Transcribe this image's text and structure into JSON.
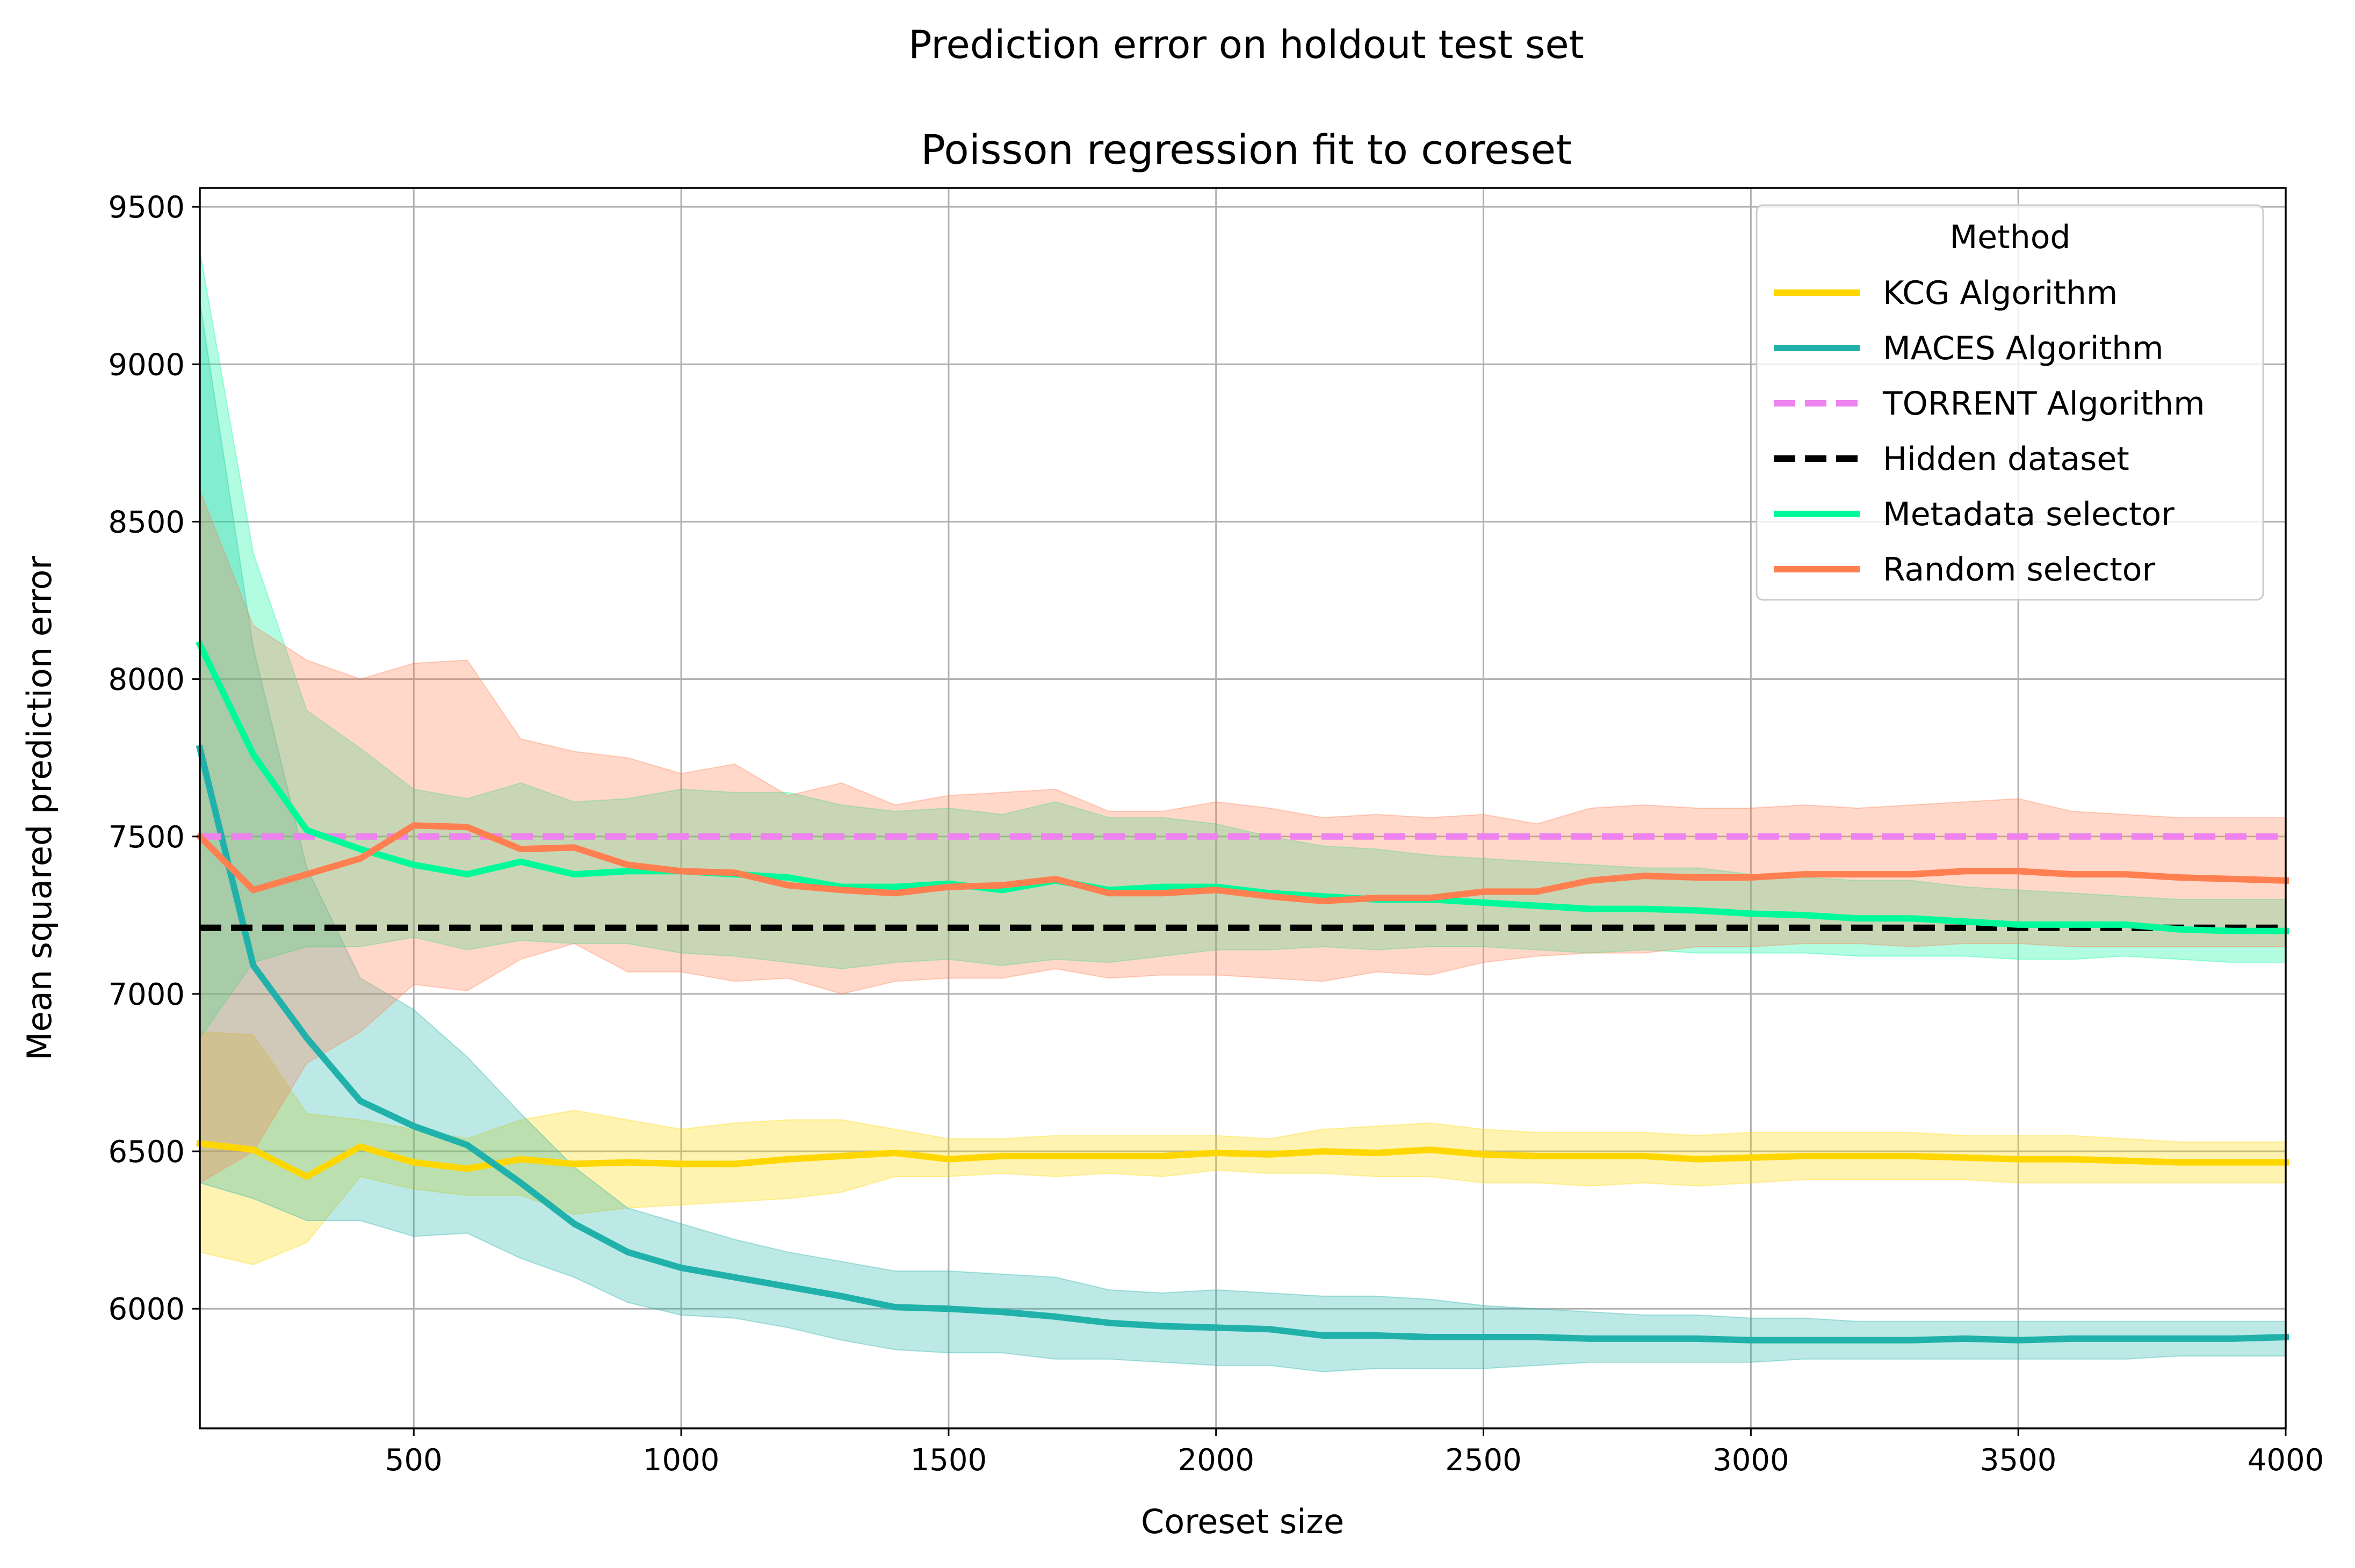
{
  "chart_data": {
    "type": "line",
    "suptitle": "Prediction error on holdout test set",
    "title": "Poisson regression fit to coreset",
    "xlabel": "Coreset size",
    "ylabel": "Mean squared prediction error",
    "xlim": [
      100,
      4000
    ],
    "ylim": [
      5620,
      9560
    ],
    "xticks": [
      500,
      1000,
      1500,
      2000,
      2500,
      3000,
      3500,
      4000
    ],
    "yticks": [
      6000,
      6500,
      7000,
      7500,
      8000,
      8500,
      9000,
      9500
    ],
    "grid": true,
    "legend": {
      "title": "Method",
      "position": "top-right"
    },
    "x": [
      100,
      200,
      300,
      400,
      500,
      600,
      700,
      800,
      900,
      1000,
      1100,
      1200,
      1300,
      1400,
      1500,
      1600,
      1700,
      1800,
      1900,
      2000,
      2100,
      2200,
      2300,
      2400,
      2500,
      2600,
      2700,
      2800,
      2900,
      3000,
      3100,
      3200,
      3300,
      3400,
      3500,
      3600,
      3700,
      3800,
      3900,
      4000
    ],
    "series": [
      {
        "name": "KCG Algorithm",
        "color": "#FFD700",
        "style": "solid",
        "values": [
          6525,
          6505,
          6420,
          6515,
          6465,
          6445,
          6475,
          6460,
          6465,
          6460,
          6460,
          6475,
          6485,
          6495,
          6475,
          6485,
          6485,
          6485,
          6485,
          6495,
          6490,
          6500,
          6495,
          6505,
          6490,
          6485,
          6485,
          6485,
          6475,
          6480,
          6485,
          6485,
          6485,
          6480,
          6475,
          6475,
          6470,
          6465,
          6465,
          6465
        ],
        "upper": [
          6880,
          6870,
          6620,
          6600,
          6570,
          6540,
          6600,
          6630,
          6600,
          6570,
          6590,
          6600,
          6600,
          6570,
          6540,
          6540,
          6550,
          6550,
          6550,
          6550,
          6540,
          6570,
          6580,
          6590,
          6570,
          6560,
          6560,
          6560,
          6550,
          6560,
          6560,
          6560,
          6560,
          6550,
          6550,
          6550,
          6540,
          6530,
          6530,
          6530
        ],
        "lower": [
          6180,
          6140,
          6210,
          6420,
          6380,
          6360,
          6360,
          6300,
          6320,
          6330,
          6340,
          6350,
          6370,
          6420,
          6420,
          6430,
          6420,
          6430,
          6420,
          6440,
          6430,
          6430,
          6420,
          6420,
          6400,
          6400,
          6390,
          6400,
          6390,
          6400,
          6410,
          6410,
          6410,
          6410,
          6400,
          6400,
          6400,
          6400,
          6400,
          6400
        ]
      },
      {
        "name": "MACES Algorithm",
        "color": "#20B2AA",
        "style": "solid",
        "values": [
          7780,
          7090,
          6860,
          6660,
          6580,
          6520,
          6400,
          6270,
          6180,
          6130,
          6100,
          6070,
          6040,
          6005,
          6000,
          5990,
          5975,
          5955,
          5945,
          5940,
          5935,
          5915,
          5915,
          5910,
          5910,
          5910,
          5905,
          5905,
          5905,
          5900,
          5900,
          5900,
          5900,
          5905,
          5900,
          5905,
          5905,
          5905,
          5905,
          5910
        ],
        "upper": [
          9200,
          8100,
          7400,
          7050,
          6950,
          6800,
          6620,
          6450,
          6320,
          6270,
          6220,
          6180,
          6150,
          6120,
          6120,
          6110,
          6100,
          6060,
          6050,
          6060,
          6050,
          6040,
          6040,
          6030,
          6010,
          6000,
          5990,
          5980,
          5980,
          5970,
          5970,
          5960,
          5960,
          5960,
          5960,
          5960,
          5960,
          5960,
          5960,
          5960
        ],
        "lower": [
          6400,
          6350,
          6280,
          6280,
          6230,
          6240,
          6160,
          6100,
          6020,
          5980,
          5970,
          5940,
          5900,
          5870,
          5860,
          5860,
          5840,
          5840,
          5830,
          5820,
          5820,
          5800,
          5810,
          5810,
          5810,
          5820,
          5830,
          5830,
          5830,
          5830,
          5840,
          5840,
          5840,
          5840,
          5840,
          5840,
          5840,
          5850,
          5850,
          5850
        ]
      },
      {
        "name": "TORRENT Algorithm",
        "color": "#EE82EE",
        "style": "dashed",
        "values": [
          7500,
          7500,
          7500,
          7500,
          7500,
          7500,
          7500,
          7500,
          7500,
          7500,
          7500,
          7500,
          7500,
          7500,
          7500,
          7500,
          7500,
          7500,
          7500,
          7500,
          7500,
          7500,
          7500,
          7500,
          7500,
          7500,
          7500,
          7500,
          7500,
          7500,
          7500,
          7500,
          7500,
          7500,
          7500,
          7500,
          7500,
          7500,
          7500,
          7500
        ]
      },
      {
        "name": "Hidden dataset",
        "color": "#000000",
        "style": "dashed",
        "values": [
          7210,
          7210,
          7210,
          7210,
          7210,
          7210,
          7210,
          7210,
          7210,
          7210,
          7210,
          7210,
          7210,
          7210,
          7210,
          7210,
          7210,
          7210,
          7210,
          7210,
          7210,
          7210,
          7210,
          7210,
          7210,
          7210,
          7210,
          7210,
          7210,
          7210,
          7210,
          7210,
          7210,
          7210,
          7210,
          7210,
          7210,
          7210,
          7210,
          7210
        ]
      },
      {
        "name": "Metadata selector",
        "color": "#00FA9A",
        "style": "solid",
        "values": [
          8110,
          7760,
          7520,
          7460,
          7410,
          7380,
          7420,
          7380,
          7390,
          7390,
          7380,
          7370,
          7340,
          7340,
          7350,
          7330,
          7360,
          7330,
          7340,
          7340,
          7320,
          7310,
          7300,
          7300,
          7290,
          7280,
          7270,
          7270,
          7265,
          7255,
          7250,
          7240,
          7240,
          7230,
          7220,
          7220,
          7220,
          7205,
          7200,
          7200
        ],
        "upper": [
          9360,
          8400,
          7900,
          7780,
          7650,
          7620,
          7670,
          7610,
          7620,
          7650,
          7640,
          7640,
          7600,
          7580,
          7590,
          7570,
          7610,
          7560,
          7560,
          7540,
          7500,
          7470,
          7460,
          7440,
          7430,
          7420,
          7410,
          7400,
          7400,
          7380,
          7370,
          7360,
          7360,
          7340,
          7330,
          7320,
          7310,
          7300,
          7300,
          7300
        ],
        "lower": [
          6860,
          7100,
          7150,
          7150,
          7180,
          7140,
          7170,
          7160,
          7160,
          7130,
          7120,
          7100,
          7080,
          7100,
          7110,
          7090,
          7110,
          7100,
          7120,
          7140,
          7140,
          7150,
          7140,
          7150,
          7150,
          7140,
          7130,
          7140,
          7130,
          7130,
          7130,
          7120,
          7120,
          7120,
          7110,
          7110,
          7120,
          7110,
          7100,
          7100
        ]
      },
      {
        "name": "Random selector",
        "color": "#FF7F50",
        "style": "solid",
        "values": [
          7500,
          7330,
          7380,
          7430,
          7535,
          7530,
          7460,
          7465,
          7410,
          7390,
          7385,
          7345,
          7330,
          7320,
          7340,
          7345,
          7365,
          7320,
          7320,
          7330,
          7310,
          7295,
          7305,
          7305,
          7325,
          7325,
          7360,
          7375,
          7370,
          7370,
          7380,
          7380,
          7380,
          7390,
          7390,
          7380,
          7380,
          7370,
          7365,
          7360
        ],
        "upper": [
          8600,
          8170,
          8060,
          8000,
          8050,
          8060,
          7810,
          7770,
          7750,
          7700,
          7730,
          7630,
          7670,
          7600,
          7630,
          7640,
          7650,
          7580,
          7580,
          7610,
          7590,
          7560,
          7570,
          7560,
          7570,
          7540,
          7590,
          7600,
          7590,
          7590,
          7600,
          7590,
          7600,
          7610,
          7620,
          7580,
          7570,
          7560,
          7560,
          7560
        ],
        "lower": [
          6400,
          6500,
          6780,
          6880,
          7030,
          7010,
          7110,
          7160,
          7070,
          7070,
          7040,
          7050,
          7000,
          7040,
          7050,
          7050,
          7080,
          7050,
          7060,
          7060,
          7050,
          7040,
          7070,
          7060,
          7100,
          7120,
          7130,
          7130,
          7150,
          7150,
          7160,
          7160,
          7150,
          7160,
          7160,
          7150,
          7150,
          7150,
          7150,
          7150
        ]
      }
    ]
  }
}
